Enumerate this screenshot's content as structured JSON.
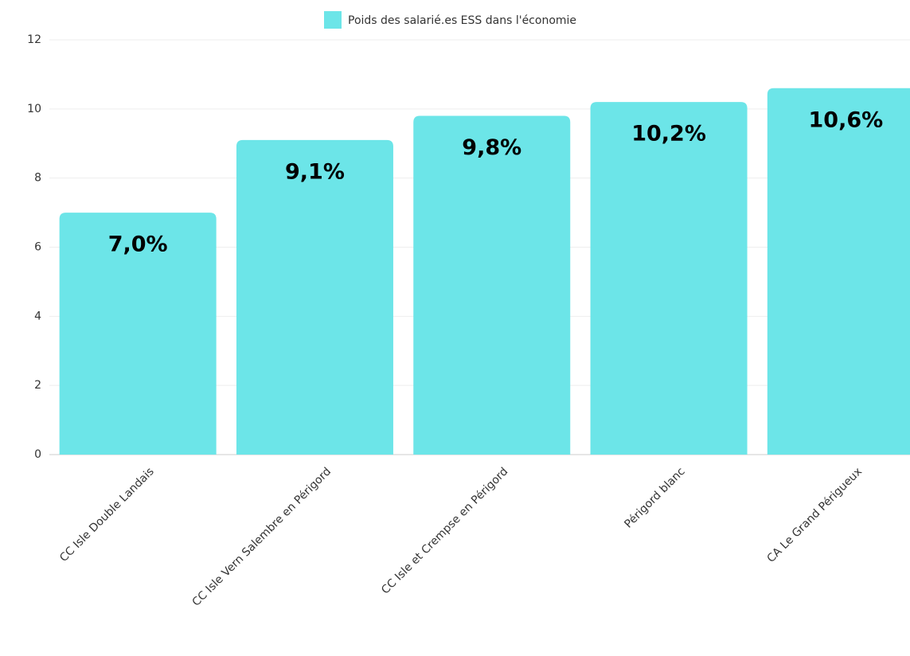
{
  "chart_data": {
    "type": "bar",
    "legend": "Poids des salarié.es ESS dans l'économie",
    "categories": [
      "CC Isle Double Landais",
      "CC Isle Vern Salembre en Périgord",
      "CC Isle et Crempse en Périgord",
      "Périgord blanc",
      "CA Le Grand Périgueux"
    ],
    "values": [
      7.0,
      9.1,
      9.8,
      10.2,
      10.6
    ],
    "value_labels": [
      "7,0%",
      "9,1%",
      "9,8%",
      "10,2%",
      "10,6%"
    ],
    "color": "#6ce5e8",
    "ylim": [
      0,
      12
    ],
    "yticks": [
      0,
      2,
      4,
      6,
      8,
      10,
      12
    ],
    "grid": true
  }
}
